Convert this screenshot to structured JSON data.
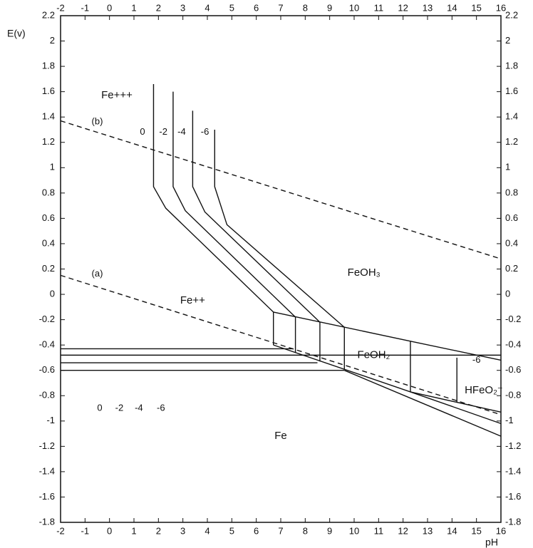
{
  "chart_data": {
    "type": "line",
    "x_label": "pH",
    "y_label": "E(v)",
    "xlim": [
      -2,
      16
    ],
    "ylim": [
      -1.8,
      2.2
    ],
    "xticks": [
      -2,
      -1,
      0,
      1,
      2,
      3,
      4,
      5,
      6,
      7,
      8,
      9,
      10,
      11,
      12,
      13,
      14,
      15,
      16
    ],
    "yticks": [
      2.2,
      2,
      1.8,
      1.6,
      1.4,
      1.2,
      1,
      0.8,
      0.6,
      0.4,
      0.2,
      0,
      -0.2,
      -0.4,
      -0.6,
      -0.8,
      -1,
      -1.2,
      -1.4,
      -1.6,
      -1.8
    ],
    "color": "#111111",
    "series": [
      {
        "name": "(b)",
        "dash": true,
        "x": [
          -2,
          16
        ],
        "values": [
          1.37,
          0.28
        ]
      },
      {
        "name": "(a)",
        "dash": true,
        "x": [
          -2,
          16
        ],
        "values": [
          0.15,
          -0.95
        ]
      },
      {
        "name": "0",
        "x": [
          1.8,
          1.8,
          2.3,
          6.7
        ],
        "values": [
          1.66,
          0.85,
          0.68,
          -0.14
        ]
      },
      {
        "name": "-2",
        "x": [
          2.6,
          2.6,
          3.1,
          7.6
        ],
        "values": [
          1.6,
          0.85,
          0.66,
          -0.18
        ]
      },
      {
        "name": "-4",
        "x": [
          3.4,
          3.4,
          3.9,
          8.6
        ],
        "values": [
          1.45,
          0.85,
          0.65,
          -0.22
        ]
      },
      {
        "name": "-6",
        "x": [
          4.3,
          4.3,
          4.8,
          9.6
        ],
        "values": [
          1.3,
          0.85,
          0.55,
          -0.26
        ]
      },
      {
        "name": "0",
        "x": [
          -2,
          7.5
        ],
        "values": [
          -0.43,
          -0.43
        ]
      },
      {
        "name": "-2",
        "x": [
          -2,
          16
        ],
        "values": [
          -0.48,
          -0.48
        ]
      },
      {
        "name": "-4",
        "x": [
          -2,
          8.5
        ],
        "values": [
          -0.54,
          -0.54
        ]
      },
      {
        "name": "-6",
        "x": [
          -2,
          9.6
        ],
        "values": [
          -0.6,
          -0.6
        ]
      },
      {
        "x": [
          6.7,
          12.3,
          16
        ],
        "values": [
          -0.14,
          -0.37,
          -0.52
        ]
      },
      {
        "x": [
          6.7,
          12.3,
          16
        ],
        "values": [
          -0.4,
          -0.77,
          -0.93
        ]
      },
      {
        "x": [
          12.3,
          16
        ],
        "values": [
          -0.77,
          -1.02
        ]
      },
      {
        "x": [
          9.6,
          16
        ],
        "values": [
          -0.6,
          -1.12
        ]
      },
      {
        "x": [
          6.7,
          6.7
        ],
        "values": [
          -0.14,
          -0.4
        ]
      },
      {
        "x": [
          7.6,
          7.6
        ],
        "values": [
          -0.18,
          -0.46
        ]
      },
      {
        "x": [
          8.6,
          8.6
        ],
        "values": [
          -0.22,
          -0.53
        ]
      },
      {
        "x": [
          9.6,
          9.6
        ],
        "values": [
          -0.26,
          -0.59
        ]
      },
      {
        "x": [
          12.3,
          12.3
        ],
        "values": [
          -0.37,
          -0.77
        ]
      },
      {
        "x": [
          14.2,
          14.2
        ],
        "values": [
          -0.5,
          -0.85
        ]
      }
    ],
    "annotations": [
      "Fe+++",
      "Fe++",
      "FeOH₃",
      "FeOH₂",
      "HFeO₂⁻",
      "Fe",
      "-6"
    ]
  }
}
